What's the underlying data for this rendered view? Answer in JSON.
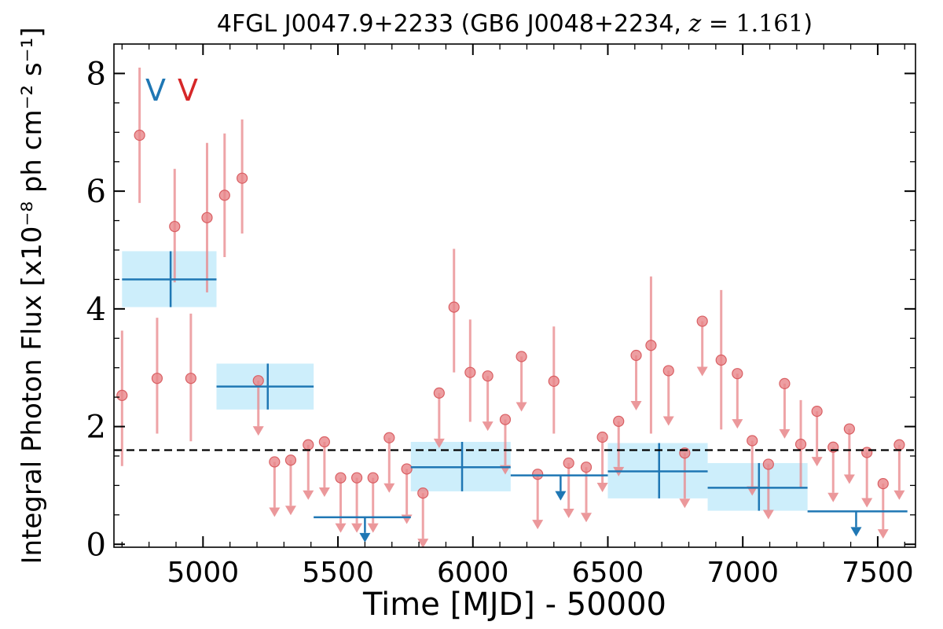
{
  "chart_data": {
    "type": "scatter",
    "title": "4FGL J0047.9+2233 (GB6 J0048+2234, z = 1.161)",
    "title_parts": {
      "main": "4FGL J0047.9+2233 (GB6 J0048+2234, ",
      "z_var": "z",
      "z_value": " = 1.161",
      "close": ")"
    },
    "xlabel": "Time [MJD] - 50000",
    "ylabel": "Integral Photon Flux [x10⁻⁸ ph cm⁻² s⁻¹]",
    "xlim": [
      4670,
      7640
    ],
    "ylim": [
      -0.05,
      8.5
    ],
    "x_ticks": [
      5000,
      5500,
      6000,
      6500,
      7000,
      7500
    ],
    "y_ticks": [
      0,
      2,
      4,
      6,
      8
    ],
    "grid": false,
    "mean_flux": 1.6,
    "markers": [
      {
        "label": "V",
        "color": "#1f77b4"
      },
      {
        "label": "V",
        "color": "#d62728"
      }
    ],
    "colors": {
      "short_bins": "#e8868a",
      "long_bins": "#1f77b4",
      "long_band": "#cdeefb",
      "mean_line": "#000000"
    },
    "series": [
      {
        "type": "short",
        "detections": [
          {
            "x": 4700,
            "y": 2.53,
            "lo": 1.33,
            "hi": 3.63
          },
          {
            "x": 4765,
            "y": 6.95,
            "lo": 5.8,
            "hi": 8.1
          },
          {
            "x": 4830,
            "y": 2.82,
            "lo": 1.88,
            "hi": 3.85
          },
          {
            "x": 4895,
            "y": 5.4,
            "lo": 4.45,
            "hi": 6.38
          },
          {
            "x": 4955,
            "y": 2.82,
            "lo": 1.75,
            "hi": 3.92
          },
          {
            "x": 5015,
            "y": 5.55,
            "lo": 4.28,
            "hi": 6.82
          },
          {
            "x": 5080,
            "y": 5.93,
            "lo": 4.88,
            "hi": 6.98
          },
          {
            "x": 5145,
            "y": 6.22,
            "lo": 5.28,
            "hi": 7.22
          },
          {
            "x": 5930,
            "y": 4.03,
            "lo": 2.92,
            "hi": 5.02
          },
          {
            "x": 5990,
            "y": 2.92,
            "lo": 2.08,
            "hi": 3.82
          },
          {
            "x": 6300,
            "y": 2.77,
            "lo": 1.88,
            "hi": 3.7
          },
          {
            "x": 6660,
            "y": 3.38,
            "lo": 1.88,
            "hi": 4.55
          },
          {
            "x": 6920,
            "y": 3.13,
            "lo": 1.95,
            "hi": 4.32
          },
          {
            "x": 7215,
            "y": 1.7,
            "lo": 0.95,
            "hi": 2.45
          }
        ],
        "upper_limits": [
          {
            "x": 5205,
            "y": 2.78
          },
          {
            "x": 5265,
            "y": 1.4
          },
          {
            "x": 5325,
            "y": 1.43
          },
          {
            "x": 5390,
            "y": 1.69
          },
          {
            "x": 5450,
            "y": 1.74
          },
          {
            "x": 5510,
            "y": 1.13
          },
          {
            "x": 5570,
            "y": 1.13
          },
          {
            "x": 5630,
            "y": 1.13
          },
          {
            "x": 5690,
            "y": 1.81
          },
          {
            "x": 5755,
            "y": 1.28
          },
          {
            "x": 5815,
            "y": 0.87
          },
          {
            "x": 5875,
            "y": 2.57
          },
          {
            "x": 6055,
            "y": 2.86
          },
          {
            "x": 6120,
            "y": 2.12
          },
          {
            "x": 6180,
            "y": 3.19
          },
          {
            "x": 6240,
            "y": 1.19
          },
          {
            "x": 6355,
            "y": 1.38
          },
          {
            "x": 6420,
            "y": 1.31
          },
          {
            "x": 6480,
            "y": 1.82
          },
          {
            "x": 6540,
            "y": 2.09
          },
          {
            "x": 6605,
            "y": 3.21
          },
          {
            "x": 6725,
            "y": 2.95
          },
          {
            "x": 6785,
            "y": 1.55
          },
          {
            "x": 6850,
            "y": 3.79
          },
          {
            "x": 6980,
            "y": 2.9
          },
          {
            "x": 7035,
            "y": 1.76
          },
          {
            "x": 7095,
            "y": 1.36
          },
          {
            "x": 7155,
            "y": 2.73
          },
          {
            "x": 7275,
            "y": 2.26
          },
          {
            "x": 7335,
            "y": 1.65
          },
          {
            "x": 7395,
            "y": 1.96
          },
          {
            "x": 7460,
            "y": 1.56
          },
          {
            "x": 7520,
            "y": 1.03
          },
          {
            "x": 7580,
            "y": 1.69
          }
        ]
      },
      {
        "type": "long",
        "detections": [
          {
            "x0": 4700,
            "x1": 5050,
            "xc": 4880,
            "y": 4.5,
            "lo": 4.03,
            "hi": 4.98
          },
          {
            "x0": 5050,
            "x1": 5410,
            "xc": 5240,
            "y": 2.68,
            "lo": 2.29,
            "hi": 3.07
          },
          {
            "x0": 5770,
            "x1": 6140,
            "xc": 5960,
            "y": 1.31,
            "lo": 0.9,
            "hi": 1.74
          },
          {
            "x0": 6500,
            "x1": 6870,
            "xc": 6690,
            "y": 1.24,
            "lo": 0.78,
            "hi": 1.72
          },
          {
            "x0": 6870,
            "x1": 7240,
            "xc": 7060,
            "y": 0.96,
            "lo": 0.57,
            "hi": 1.38
          }
        ],
        "upper_limits": [
          {
            "x0": 5410,
            "x1": 5770,
            "xc": 5600,
            "y": 0.46
          },
          {
            "x0": 6140,
            "x1": 6500,
            "xc": 6325,
            "y": 1.17
          },
          {
            "x0": 7240,
            "x1": 7610,
            "xc": 7420,
            "y": 0.56
          }
        ]
      }
    ]
  }
}
